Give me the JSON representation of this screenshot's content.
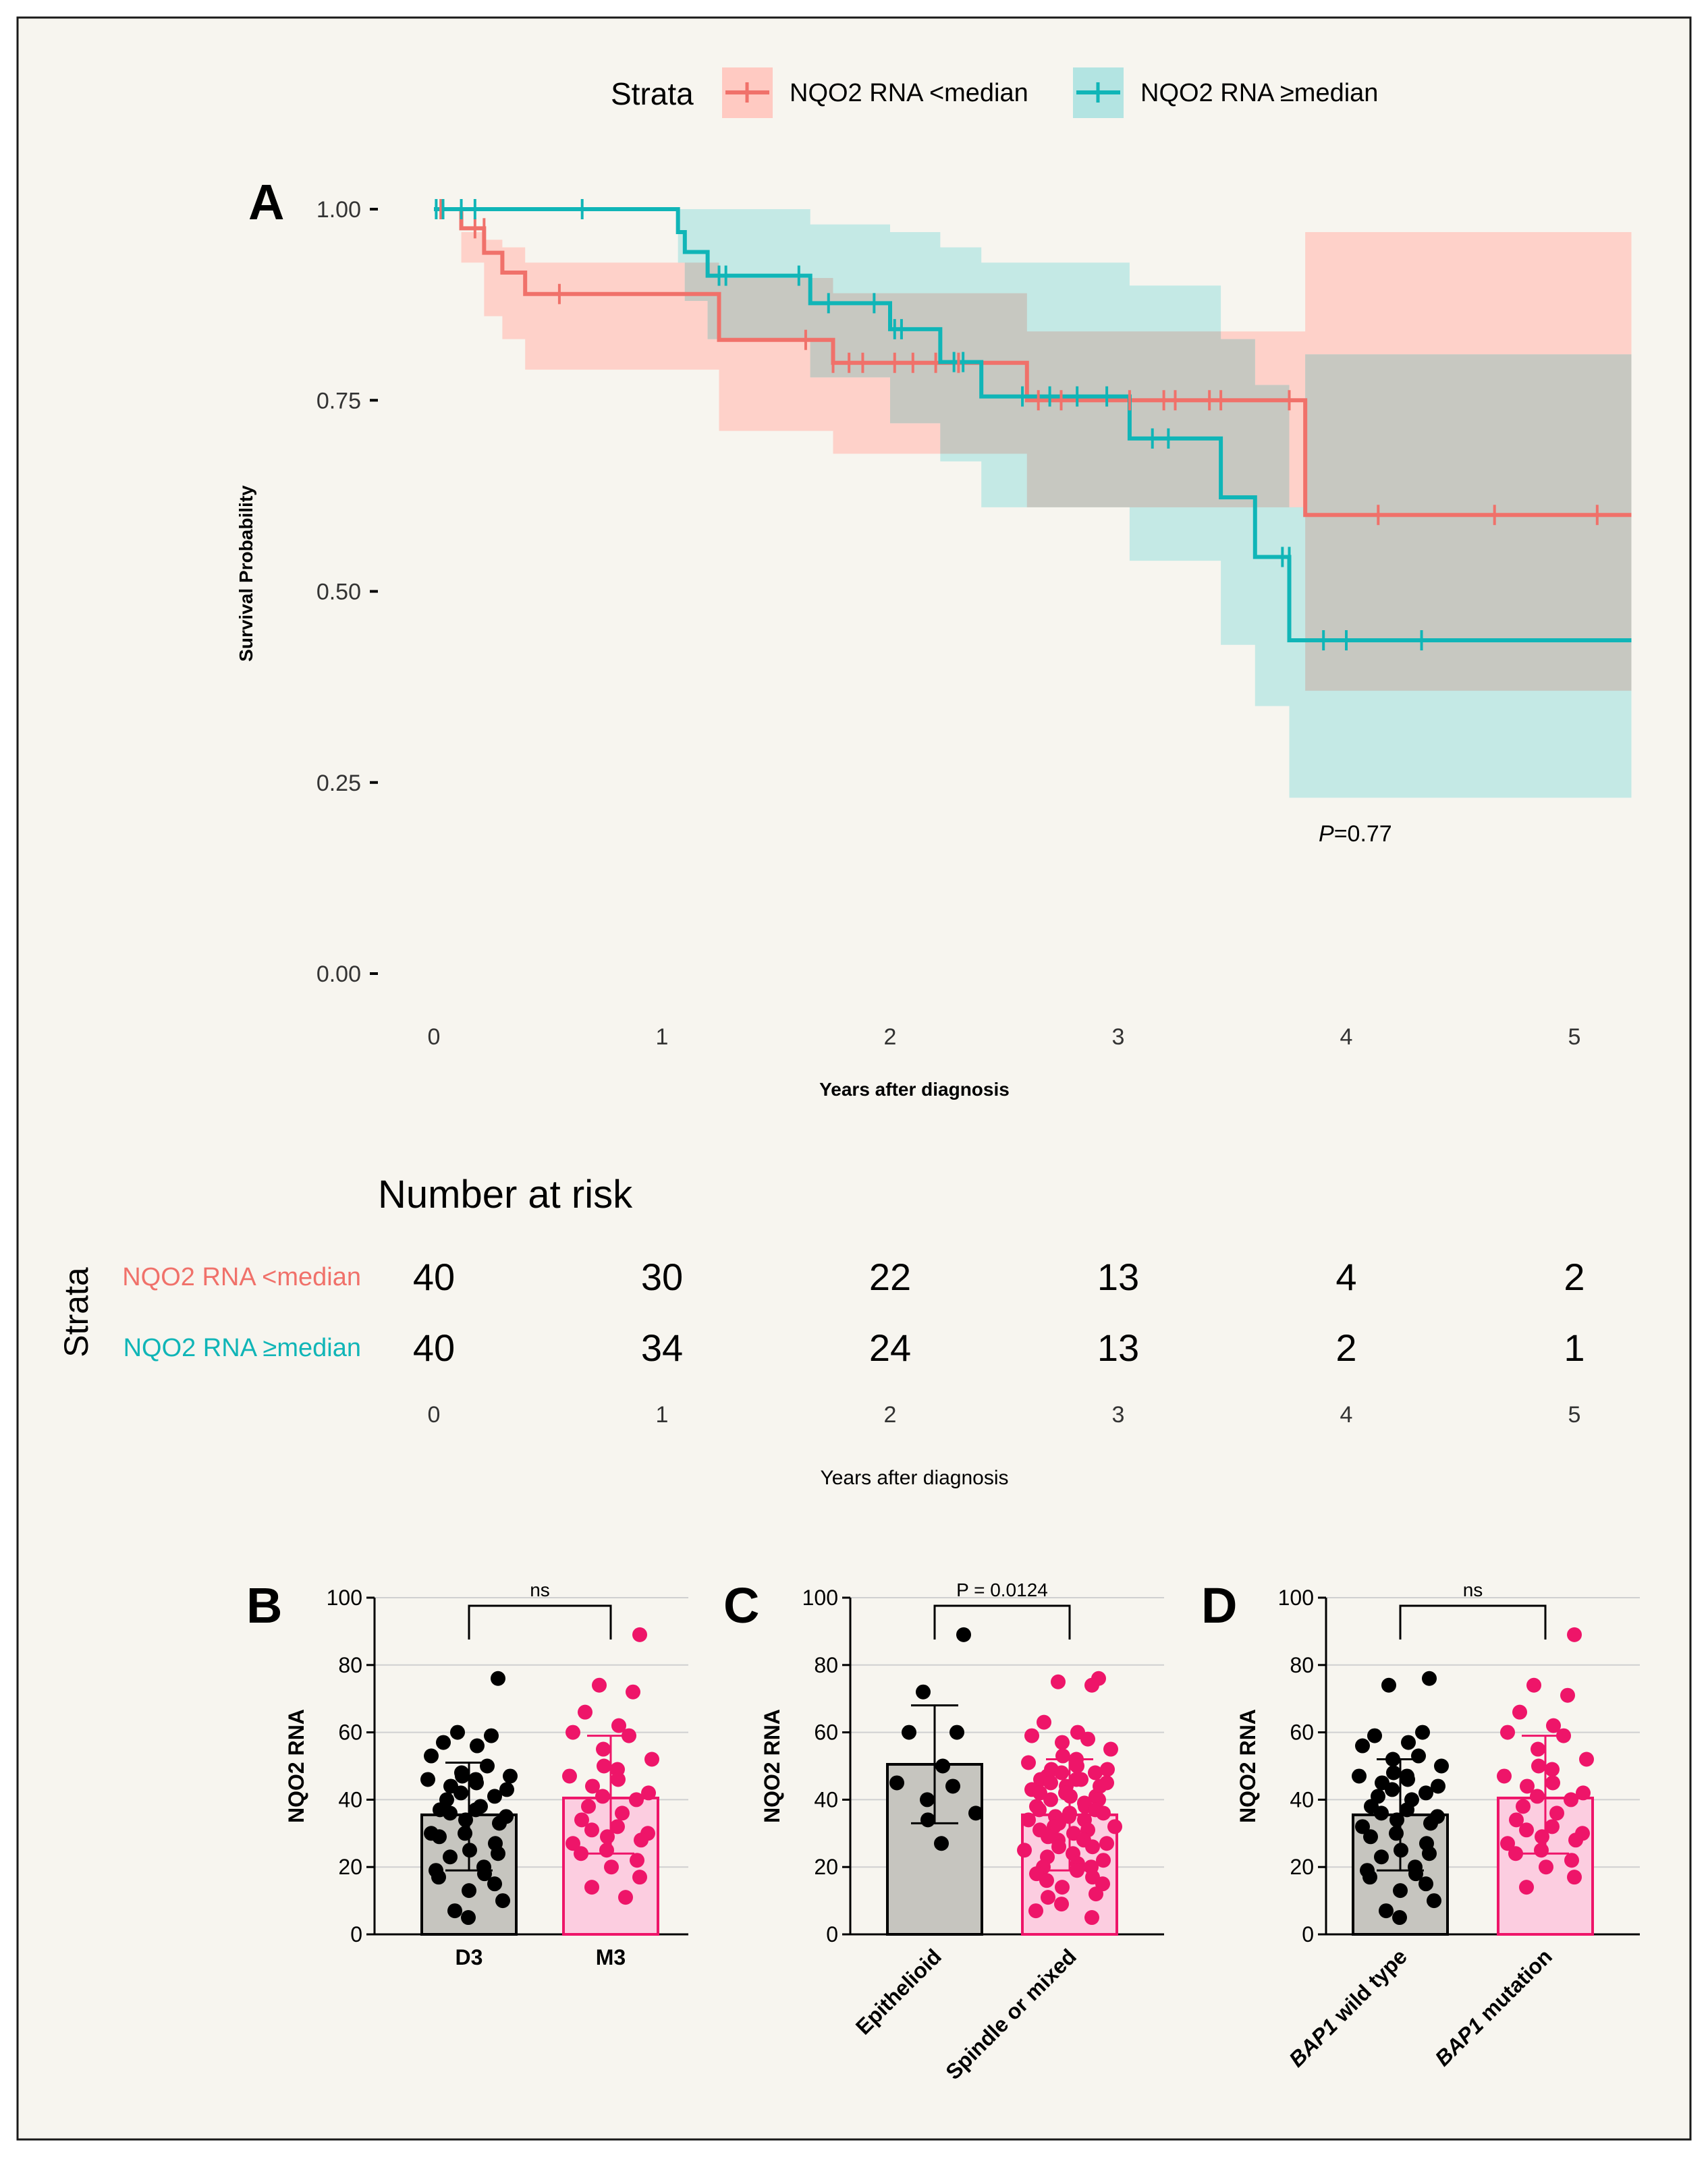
{
  "colors": {
    "low": "#f0716a",
    "low_band": "#ffcac2",
    "high": "#10b5b7",
    "high_band": "#b3e4e2",
    "overlap": "#c7c8c1",
    "page_bg": "#f7f5ef",
    "black": "#000000",
    "pink": "#ee1569",
    "pink_fill": "#fccde0",
    "grey_fill": "#c6c5bf"
  },
  "chart_data": [
    {
      "panel": "A",
      "type": "line",
      "subtype": "kaplan-meier",
      "ylabel": "Survival Probability",
      "xlabel": "Years after diagnosis",
      "xlim": [
        0,
        5.25
      ],
      "ylim": [
        0,
        1
      ],
      "xticks": [
        "0",
        "1",
        "2",
        "3",
        "4",
        "5"
      ],
      "yticks": [
        "0.00",
        "0.25",
        "0.50",
        "0.75",
        "1.00"
      ],
      "pvalue_prefix": "P",
      "pvalue": "=0.77",
      "legend_title": "Strata",
      "series": [
        {
          "name": "NQO2 RNA <median",
          "color_key": "low",
          "steps": [
            [
              0,
              1
            ],
            [
              0.12,
              0.975
            ],
            [
              0.22,
              0.943
            ],
            [
              0.3,
              0.917
            ],
            [
              0.4,
              0.889
            ],
            [
              1.25,
              0.829
            ],
            [
              1.75,
              0.799
            ],
            [
              2.6,
              0.75
            ],
            [
              3.82,
              0.6
            ],
            [
              5.25,
              0.6
            ]
          ],
          "censor": [
            [
              0.03,
              1
            ],
            [
              0.18,
              0.975
            ],
            [
              0.22,
              0.975
            ],
            [
              0.55,
              0.889
            ],
            [
              1.63,
              0.829
            ],
            [
              1.75,
              0.799
            ],
            [
              1.82,
              0.799
            ],
            [
              1.88,
              0.799
            ],
            [
              2.02,
              0.799
            ],
            [
              2.1,
              0.799
            ],
            [
              2.2,
              0.799
            ],
            [
              2.3,
              0.799
            ],
            [
              2.65,
              0.75
            ],
            [
              2.75,
              0.75
            ],
            [
              3.05,
              0.75
            ],
            [
              3.2,
              0.75
            ],
            [
              3.25,
              0.75
            ],
            [
              3.4,
              0.75
            ],
            [
              3.45,
              0.75
            ],
            [
              3.75,
              0.75
            ],
            [
              4.14,
              0.6
            ],
            [
              4.65,
              0.6
            ],
            [
              5.1,
              0.6
            ]
          ],
          "band": [
            [
              0,
              1,
              1
            ],
            [
              0.12,
              0.97,
              0.93
            ],
            [
              0.22,
              0.96,
              0.86
            ],
            [
              0.3,
              0.95,
              0.83
            ],
            [
              0.4,
              0.93,
              0.79
            ],
            [
              1.25,
              0.91,
              0.71
            ],
            [
              1.75,
              0.89,
              0.68
            ],
            [
              2.6,
              0.84,
              0.61
            ],
            [
              3.82,
              0.97,
              0.37
            ],
            [
              5.25,
              0.97,
              0.37
            ]
          ]
        },
        {
          "name": "NQO2 RNA ≥median",
          "color_key": "high",
          "steps": [
            [
              0,
              1
            ],
            [
              1.07,
              0.97
            ],
            [
              1.1,
              0.944
            ],
            [
              1.2,
              0.913
            ],
            [
              1.65,
              0.877
            ],
            [
              2.0,
              0.843
            ],
            [
              2.22,
              0.8
            ],
            [
              2.4,
              0.755
            ],
            [
              3.05,
              0.7
            ],
            [
              3.45,
              0.623
            ],
            [
              3.6,
              0.545
            ],
            [
              3.75,
              0.436
            ],
            [
              5.25,
              0.436
            ]
          ],
          "censor": [
            [
              0.01,
              1
            ],
            [
              0.04,
              1
            ],
            [
              0.12,
              1
            ],
            [
              0.18,
              1
            ],
            [
              0.65,
              1
            ],
            [
              1.25,
              0.913
            ],
            [
              1.28,
              0.913
            ],
            [
              1.6,
              0.913
            ],
            [
              1.73,
              0.877
            ],
            [
              1.93,
              0.877
            ],
            [
              2.02,
              0.843
            ],
            [
              2.05,
              0.843
            ],
            [
              2.28,
              0.8
            ],
            [
              2.32,
              0.8
            ],
            [
              2.58,
              0.755
            ],
            [
              2.7,
              0.755
            ],
            [
              2.82,
              0.755
            ],
            [
              2.95,
              0.755
            ],
            [
              3.15,
              0.7
            ],
            [
              3.22,
              0.7
            ],
            [
              3.72,
              0.545
            ],
            [
              3.75,
              0.545
            ],
            [
              3.9,
              0.436
            ],
            [
              4.0,
              0.436
            ],
            [
              4.33,
              0.436
            ]
          ],
          "band": [
            [
              0,
              1,
              1
            ],
            [
              1.07,
              1,
              0.93
            ],
            [
              1.1,
              1,
              0.88
            ],
            [
              1.2,
              1,
              0.83
            ],
            [
              1.65,
              0.98,
              0.78
            ],
            [
              2.0,
              0.97,
              0.72
            ],
            [
              2.22,
              0.95,
              0.67
            ],
            [
              2.4,
              0.93,
              0.61
            ],
            [
              3.05,
              0.9,
              0.54
            ],
            [
              3.45,
              0.83,
              0.43
            ],
            [
              3.6,
              0.77,
              0.35
            ],
            [
              3.75,
              0.61,
              0.23
            ],
            [
              3.82,
              0.81,
              0.23
            ],
            [
              5.25,
              0.81,
              0.23
            ]
          ]
        }
      ]
    },
    {
      "panel": "risk-table",
      "type": "table",
      "title": "Number at risk",
      "row_axis_title": "Strata",
      "xlabel": "Years after diagnosis",
      "times": [
        "0",
        "1",
        "2",
        "3",
        "4",
        "5"
      ],
      "rows": [
        {
          "label": "NQO2 RNA <median",
          "color_key": "low",
          "values": [
            40,
            30,
            22,
            13,
            4,
            2
          ]
        },
        {
          "label": "NQO2 RNA ≥median",
          "color_key": "high",
          "values": [
            40,
            34,
            24,
            13,
            2,
            1
          ]
        }
      ]
    },
    {
      "panel": "B",
      "type": "bar",
      "subtype": "bar-with-points",
      "ylabel": "NQO2 RNA",
      "ylim": [
        0,
        100
      ],
      "yticks": [
        0,
        20,
        40,
        60,
        80,
        100
      ],
      "comparison": "ns",
      "groups": [
        {
          "label": "D3",
          "italic_part": "",
          "mean": 35.5,
          "sd_low": 19.0,
          "sd_high": 51.0,
          "fill_key": "grey_fill",
          "color_key": "black",
          "points": [
            76,
            60,
            59,
            57,
            56,
            53,
            50,
            48,
            47,
            47,
            46,
            46,
            45,
            44,
            43,
            42,
            41,
            40,
            38,
            37,
            37,
            36,
            35,
            34,
            33,
            30,
            30,
            29,
            27,
            25,
            24,
            23,
            20,
            19,
            18,
            17,
            15,
            13,
            10,
            7,
            5
          ]
        },
        {
          "label": "M3",
          "italic_part": "",
          "mean": 40.5,
          "sd_low": 24.0,
          "sd_high": 59.0,
          "fill_key": "pink_fill",
          "color_key": "pink",
          "points": [
            89,
            74,
            72,
            66,
            62,
            60,
            59,
            55,
            52,
            50,
            49,
            47,
            46,
            44,
            42,
            41,
            40,
            38,
            36,
            34,
            32,
            31,
            30,
            29,
            28,
            27,
            25,
            24,
            22,
            20,
            17,
            14,
            11
          ]
        }
      ]
    },
    {
      "panel": "C",
      "type": "bar",
      "subtype": "bar-with-points",
      "ylabel": "NQO2 RNA",
      "ylim": [
        0,
        100
      ],
      "yticks": [
        0,
        20,
        40,
        60,
        80,
        100
      ],
      "comparison": "P = 0.0124",
      "groups": [
        {
          "label": "Epithelioid",
          "italic_part": "",
          "mean": 50.5,
          "sd_low": 33.0,
          "sd_high": 68.0,
          "fill_key": "grey_fill",
          "color_key": "black",
          "points": [
            89,
            72,
            60,
            60,
            50,
            45,
            44,
            40,
            36,
            34,
            27
          ]
        },
        {
          "label": "Spindle or mixed",
          "italic_part": "",
          "mean": 35.5,
          "sd_low": 19.0,
          "sd_high": 52.0,
          "fill_key": "pink_fill",
          "color_key": "pink",
          "points": [
            76,
            75,
            74,
            63,
            60,
            59,
            58,
            57,
            55,
            53,
            52,
            51,
            50,
            49,
            49,
            48,
            48,
            47,
            46,
            46,
            46,
            45,
            45,
            44,
            44,
            43,
            42,
            42,
            41,
            41,
            40,
            40,
            39,
            38,
            38,
            37,
            37,
            36,
            36,
            35,
            35,
            34,
            34,
            33,
            32,
            32,
            31,
            31,
            30,
            29,
            28,
            28,
            27,
            26,
            26,
            25,
            24,
            23,
            22,
            21,
            20,
            20,
            19,
            18,
            17,
            16,
            15,
            14,
            12,
            11,
            9,
            7,
            5
          ]
        }
      ]
    },
    {
      "panel": "D",
      "type": "bar",
      "subtype": "bar-with-points",
      "ylabel": "NQO2 RNA",
      "ylim": [
        0,
        100
      ],
      "yticks": [
        0,
        20,
        40,
        60,
        80,
        100
      ],
      "comparison": "ns",
      "groups": [
        {
          "label": " wild type",
          "italic_part": "BAP1",
          "mean": 35.5,
          "sd_low": 19.0,
          "sd_high": 52.0,
          "fill_key": "grey_fill",
          "color_key": "black",
          "points": [
            76,
            74,
            60,
            59,
            57,
            56,
            53,
            52,
            50,
            48,
            47,
            47,
            46,
            45,
            44,
            43,
            42,
            41,
            40,
            38,
            37,
            36,
            35,
            34,
            33,
            32,
            30,
            29,
            27,
            25,
            24,
            23,
            20,
            19,
            18,
            17,
            15,
            13,
            10,
            7,
            5
          ]
        },
        {
          "label": " mutation",
          "italic_part": "BAP1",
          "mean": 40.5,
          "sd_low": 24.0,
          "sd_high": 59.0,
          "fill_key": "pink_fill",
          "color_key": "pink",
          "points": [
            89,
            74,
            71,
            66,
            62,
            60,
            59,
            55,
            52,
            50,
            49,
            47,
            45,
            44,
            42,
            41,
            40,
            38,
            36,
            34,
            32,
            31,
            30,
            29,
            28,
            27,
            25,
            24,
            22,
            20,
            17,
            14
          ]
        }
      ]
    }
  ]
}
